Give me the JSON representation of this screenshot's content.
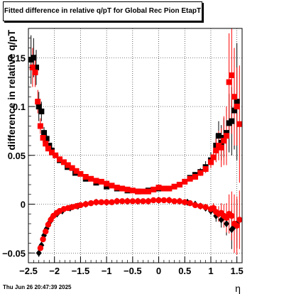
{
  "chart_data": {
    "type": "scatter",
    "title": "Fitted difference in relative q/pT for Global Rec Pion EtapT",
    "xlabel": "η",
    "ylabel": "difference in relative q/pT",
    "xlim": [
      -2.5,
      1.6
    ],
    "ylim": [
      -0.06,
      0.18
    ],
    "x_ticks": [
      "−2.5",
      "−2",
      "−1.5",
      "−1",
      "−0.5",
      "0",
      "0.5",
      "1",
      "1.5"
    ],
    "y_ticks": [
      "−0.05",
      "0",
      "0.05",
      "0.1",
      "0.15"
    ],
    "grid": true,
    "series": [
      {
        "marker": "square",
        "color": "#000000",
        "role": "upper-black",
        "points": [
          [
            -2.45,
            0.148,
            0.025
          ],
          [
            -2.4,
            0.15,
            0.02
          ],
          [
            -2.35,
            0.14,
            0.018
          ],
          [
            -2.3,
            0.1,
            0.015
          ],
          [
            -2.25,
            0.095,
            0.01
          ],
          [
            -2.2,
            0.073,
            0.006
          ],
          [
            -2.15,
            0.067,
            0.004
          ],
          [
            -2.1,
            0.06,
            0.003
          ],
          [
            -2.05,
            0.055,
            0.002
          ],
          [
            -1.9,
            0.045,
            0.002
          ],
          [
            -1.75,
            0.038,
            0.002
          ],
          [
            -1.6,
            0.032,
            0.001
          ],
          [
            -1.4,
            0.026,
            0.001
          ],
          [
            -1.2,
            0.022,
            0.001
          ],
          [
            -1.0,
            0.018,
            0.001
          ],
          [
            -0.8,
            0.016,
            0.001
          ],
          [
            -0.6,
            0.014,
            0.001
          ],
          [
            -0.4,
            0.013,
            0.001
          ],
          [
            -0.2,
            0.014,
            0.001
          ],
          [
            0.0,
            0.016,
            0.001
          ],
          [
            0.2,
            0.016,
            0.001
          ],
          [
            0.4,
            0.02,
            0.001
          ],
          [
            0.6,
            0.027,
            0.002
          ],
          [
            0.7,
            0.03,
            0.003
          ],
          [
            0.8,
            0.033,
            0.004
          ],
          [
            0.9,
            0.038,
            0.006
          ],
          [
            1.0,
            0.045,
            0.008
          ],
          [
            1.1,
            0.06,
            0.012
          ],
          [
            1.15,
            0.07,
            0.015
          ],
          [
            1.2,
            0.063,
            0.018
          ],
          [
            1.25,
            0.068,
            0.02
          ],
          [
            1.3,
            0.073,
            0.025
          ],
          [
            1.35,
            0.083,
            0.03
          ],
          [
            1.4,
            0.085,
            0.035
          ],
          [
            1.45,
            0.096,
            0.04
          ],
          [
            1.5,
            0.105,
            0.06
          ]
        ]
      },
      {
        "marker": "square",
        "color": "#ff0000",
        "role": "upper-red",
        "points": [
          [
            -2.42,
            0.14,
            0.02
          ],
          [
            -2.37,
            0.135,
            0.015
          ],
          [
            -2.32,
            0.105,
            0.012
          ],
          [
            -2.27,
            0.08,
            0.008
          ],
          [
            -2.22,
            0.068,
            0.005
          ],
          [
            -2.17,
            0.062,
            0.004
          ],
          [
            -2.12,
            0.057,
            0.003
          ],
          [
            -2.05,
            0.053,
            0.002
          ],
          [
            -1.98,
            0.05,
            0.002
          ],
          [
            -1.9,
            0.046,
            0.002
          ],
          [
            -1.82,
            0.043,
            0.002
          ],
          [
            -1.74,
            0.04,
            0.002
          ],
          [
            -1.66,
            0.037,
            0.001
          ],
          [
            -1.58,
            0.034,
            0.001
          ],
          [
            -1.5,
            0.031,
            0.001
          ],
          [
            -1.4,
            0.028,
            0.001
          ],
          [
            -1.3,
            0.026,
            0.001
          ],
          [
            -1.2,
            0.024,
            0.001
          ],
          [
            -1.1,
            0.023,
            0.001
          ],
          [
            -1.0,
            0.021,
            0.001
          ],
          [
            -0.9,
            0.019,
            0.001
          ],
          [
            -0.8,
            0.017,
            0.001
          ],
          [
            -0.7,
            0.016,
            0.001
          ],
          [
            -0.6,
            0.015,
            0.001
          ],
          [
            -0.5,
            0.014,
            0.001
          ],
          [
            -0.4,
            0.013,
            0.001
          ],
          [
            -0.3,
            0.013,
            0.001
          ],
          [
            -0.2,
            0.013,
            0.001
          ],
          [
            -0.1,
            0.015,
            0.001
          ],
          [
            0.0,
            0.017,
            0.001
          ],
          [
            0.1,
            0.016,
            0.001
          ],
          [
            0.2,
            0.016,
            0.001
          ],
          [
            0.3,
            0.018,
            0.001
          ],
          [
            0.4,
            0.02,
            0.001
          ],
          [
            0.5,
            0.023,
            0.001
          ],
          [
            0.6,
            0.026,
            0.002
          ],
          [
            0.7,
            0.028,
            0.002
          ],
          [
            0.8,
            0.032,
            0.003
          ],
          [
            0.9,
            0.036,
            0.004
          ],
          [
            1.0,
            0.043,
            0.006
          ],
          [
            1.05,
            0.048,
            0.008
          ],
          [
            1.1,
            0.055,
            0.012
          ],
          [
            1.15,
            0.06,
            0.015
          ],
          [
            1.2,
            0.058,
            0.02
          ],
          [
            1.25,
            0.065,
            0.025
          ],
          [
            1.3,
            0.07,
            0.03
          ],
          [
            1.35,
            0.125,
            0.05
          ],
          [
            1.4,
            0.132,
            0.06
          ],
          [
            1.45,
            0.11,
            0.05
          ],
          [
            1.5,
            0.1,
            0.04
          ],
          [
            1.55,
            0.082,
            0.06
          ]
        ]
      },
      {
        "marker": "diamond",
        "color": "#000000",
        "role": "lower-black",
        "points": [
          [
            -2.3,
            -0.05,
            0.004
          ],
          [
            -2.25,
            -0.042,
            0.003
          ],
          [
            -2.2,
            -0.032,
            0.003
          ],
          [
            -2.15,
            -0.025,
            0.002
          ],
          [
            -2.1,
            -0.019,
            0.002
          ],
          [
            -2.05,
            -0.014,
            0.002
          ],
          [
            -1.95,
            -0.01,
            0.001
          ],
          [
            -1.85,
            -0.007,
            0.001
          ],
          [
            -1.7,
            -0.004,
            0.001
          ],
          [
            -1.55,
            -0.002,
            0.001
          ],
          [
            -1.4,
            0.0,
            0.001
          ],
          [
            -1.2,
            0.002,
            0.001
          ],
          [
            -1.0,
            0.002,
            0.001
          ],
          [
            -0.8,
            0.003,
            0.001
          ],
          [
            -0.6,
            0.003,
            0.001
          ],
          [
            -0.4,
            0.003,
            0.001
          ],
          [
            -0.2,
            0.003,
            0.001
          ],
          [
            0.0,
            0.004,
            0.001
          ],
          [
            0.2,
            0.004,
            0.001
          ],
          [
            0.4,
            0.003,
            0.001
          ],
          [
            0.55,
            0.002,
            0.001
          ],
          [
            0.7,
            0.0,
            0.002
          ],
          [
            0.8,
            -0.002,
            0.002
          ],
          [
            0.9,
            -0.004,
            0.003
          ],
          [
            1.0,
            -0.007,
            0.004
          ],
          [
            1.1,
            -0.012,
            0.006
          ],
          [
            1.2,
            -0.016,
            0.008
          ],
          [
            1.3,
            -0.02,
            0.012
          ],
          [
            1.4,
            -0.026,
            0.02
          ],
          [
            1.45,
            -0.023,
            0.02
          ],
          [
            1.5,
            -0.02,
            0.025
          ]
        ]
      },
      {
        "marker": "circle",
        "color": "#ff0000",
        "role": "lower-red",
        "points": [
          [
            -2.27,
            -0.045,
            0.003
          ],
          [
            -2.22,
            -0.036,
            0.003
          ],
          [
            -2.17,
            -0.028,
            0.002
          ],
          [
            -2.12,
            -0.021,
            0.002
          ],
          [
            -2.07,
            -0.016,
            0.002
          ],
          [
            -2.02,
            -0.012,
            0.002
          ],
          [
            -1.96,
            -0.009,
            0.001
          ],
          [
            -1.9,
            -0.007,
            0.001
          ],
          [
            -1.82,
            -0.005,
            0.001
          ],
          [
            -1.74,
            -0.004,
            0.001
          ],
          [
            -1.66,
            -0.003,
            0.001
          ],
          [
            -1.58,
            -0.002,
            0.001
          ],
          [
            -1.5,
            -0.001,
            0.001
          ],
          [
            -1.4,
            0.0,
            0.001
          ],
          [
            -1.3,
            0.001,
            0.001
          ],
          [
            -1.2,
            0.002,
            0.001
          ],
          [
            -1.1,
            0.002,
            0.001
          ],
          [
            -1.0,
            0.002,
            0.001
          ],
          [
            -0.9,
            0.002,
            0.001
          ],
          [
            -0.8,
            0.003,
            0.001
          ],
          [
            -0.7,
            0.003,
            0.001
          ],
          [
            -0.6,
            0.003,
            0.001
          ],
          [
            -0.5,
            0.003,
            0.001
          ],
          [
            -0.4,
            0.003,
            0.001
          ],
          [
            -0.3,
            0.003,
            0.001
          ],
          [
            -0.2,
            0.003,
            0.001
          ],
          [
            -0.1,
            0.004,
            0.001
          ],
          [
            0.0,
            0.004,
            0.001
          ],
          [
            0.1,
            0.004,
            0.001
          ],
          [
            0.2,
            0.004,
            0.001
          ],
          [
            0.3,
            0.003,
            0.001
          ],
          [
            0.4,
            0.003,
            0.001
          ],
          [
            0.5,
            0.002,
            0.001
          ],
          [
            0.6,
            0.001,
            0.001
          ],
          [
            0.7,
            -0.001,
            0.002
          ],
          [
            0.8,
            -0.002,
            0.002
          ],
          [
            0.9,
            -0.003,
            0.003
          ],
          [
            1.0,
            -0.005,
            0.004
          ],
          [
            1.05,
            -0.004,
            0.005
          ],
          [
            1.1,
            -0.008,
            0.006
          ],
          [
            1.15,
            -0.01,
            0.008
          ],
          [
            1.2,
            -0.009,
            0.01
          ],
          [
            1.25,
            -0.012,
            0.012
          ],
          [
            1.3,
            -0.014,
            0.015
          ],
          [
            1.35,
            -0.01,
            0.02
          ],
          [
            1.4,
            -0.012,
            0.025
          ],
          [
            1.45,
            -0.02,
            0.03
          ],
          [
            1.5,
            -0.022,
            0.03
          ],
          [
            1.55,
            -0.016,
            0.03
          ]
        ]
      }
    ]
  },
  "footer": {
    "date": "Thu Jun 26 20:47:39 2025"
  }
}
